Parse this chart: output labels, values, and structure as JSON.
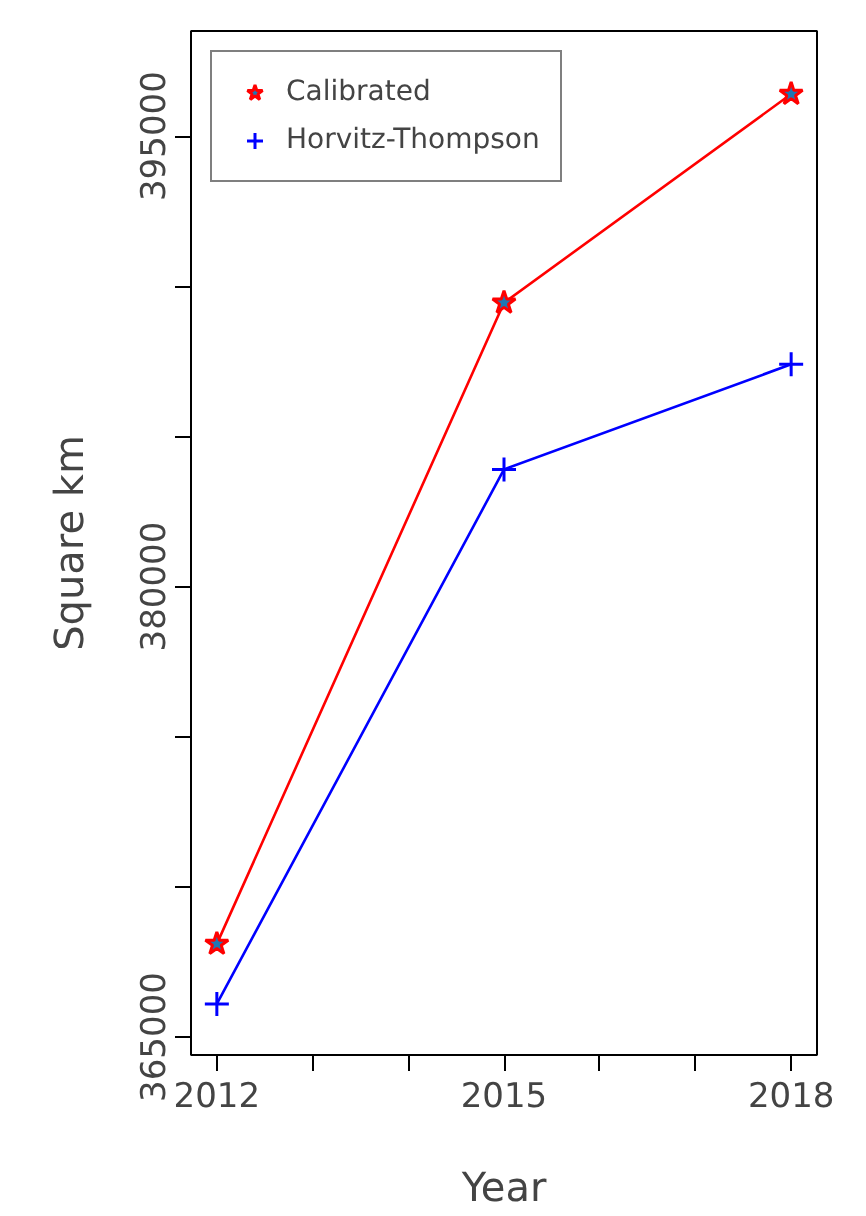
{
  "chart_data": {
    "type": "line",
    "xlabel": "Year",
    "ylabel": "Square km",
    "x": [
      2012,
      2015,
      2018
    ],
    "series": [
      {
        "name": "Calibrated",
        "color": "#ff0000",
        "marker": "star",
        "values": [
          368100,
          389450,
          396400
        ]
      },
      {
        "name": "Horvitz-Thompson",
        "color": "#0000ff",
        "marker": "cross",
        "values": [
          366100,
          383900,
          387400
        ]
      }
    ],
    "xlim": [
      2011.73,
      2018.27
    ],
    "ylim": [
      364400,
      398500
    ],
    "xticks": [
      2012,
      {
        "value": 2013,
        "label": null
      },
      {
        "value": 2014,
        "label": null
      },
      2015,
      {
        "value": 2016,
        "label": null
      },
      {
        "value": 2017,
        "label": null
      },
      2018
    ],
    "yticks": [
      365000,
      {
        "value": 370000,
        "label": null
      },
      {
        "value": 375000,
        "label": null
      },
      380000,
      {
        "value": 385000,
        "label": null
      },
      {
        "value": 390000,
        "label": null
      },
      395000
    ],
    "grid": false,
    "legend": "top left"
  }
}
